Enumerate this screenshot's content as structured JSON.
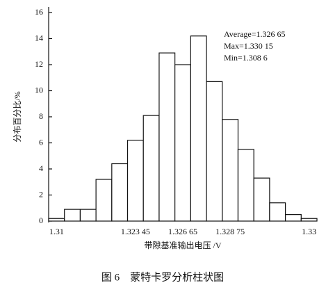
{
  "chart_data": {
    "type": "bar",
    "categories": [
      "1.31",
      null,
      null,
      null,
      null,
      "1.323 45",
      null,
      null,
      "1.326 65",
      null,
      null,
      "1.328 75",
      null,
      null,
      null,
      null,
      "1.33"
    ],
    "values": [
      0.2,
      0.9,
      0.9,
      3.2,
      4.4,
      6.2,
      8.1,
      12.9,
      12.0,
      14.2,
      10.7,
      7.8,
      5.5,
      3.3,
      1.4,
      0.5,
      0.2
    ],
    "color": "#ffffff",
    "ylim": [
      0,
      16
    ],
    "yticks": [
      0,
      2,
      4,
      6,
      8,
      10,
      12,
      14,
      16
    ],
    "ylabel": "分布百分比/%",
    "xlabel": "带隙基准输出电压 /V",
    "annotations": [
      "Average=1.326 65",
      "Max=1.330 15",
      "Min=1.308 6"
    ],
    "caption": "图 6　蒙特卡罗分析柱状图"
  }
}
